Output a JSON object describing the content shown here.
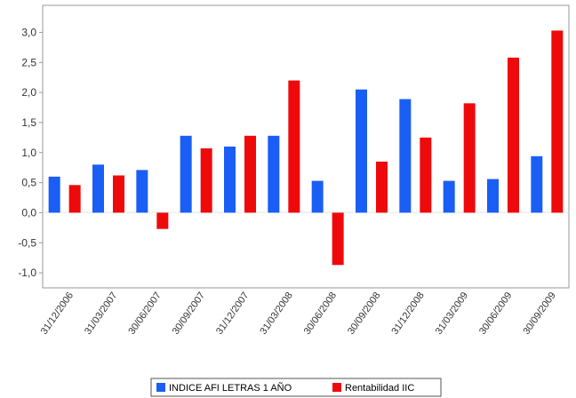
{
  "chart_data": {
    "type": "bar",
    "title": "",
    "xlabel": "",
    "ylabel": "",
    "categories": [
      "31/12/2006",
      "31/03/2007",
      "30/06/2007",
      "30/09/2007",
      "31/12/2007",
      "31/03/2008",
      "30/06/2008",
      "30/09/2008",
      "31/12/2008",
      "31/03/2009",
      "30/06/2009",
      "30/09/2009"
    ],
    "series": [
      {
        "name": "INDICE AFI LETRAS 1 AÑO",
        "color": "#1a5ef5",
        "values": [
          0.6,
          0.8,
          0.71,
          1.28,
          1.1,
          1.28,
          0.53,
          2.05,
          1.89,
          0.53,
          0.56,
          0.94
        ]
      },
      {
        "name": "Rentabilidad IIC",
        "color": "#ee0a0a",
        "values": [
          0.46,
          0.62,
          -0.27,
          1.07,
          1.28,
          2.2,
          -0.87,
          0.85,
          1.25,
          1.82,
          2.58,
          3.03
        ]
      }
    ],
    "ylim": [
      -1.25,
      3.45
    ],
    "yticks": [
      "-1,0",
      "-0,5",
      "0,0",
      "0,5",
      "1,0",
      "1,5",
      "2,0",
      "2,5",
      "3,0"
    ],
    "ytick_values": [
      -1.0,
      -0.5,
      0.0,
      0.5,
      1.0,
      1.5,
      2.0,
      2.5,
      3.0
    ],
    "grid": false,
    "legend_position": "bottom-center"
  }
}
